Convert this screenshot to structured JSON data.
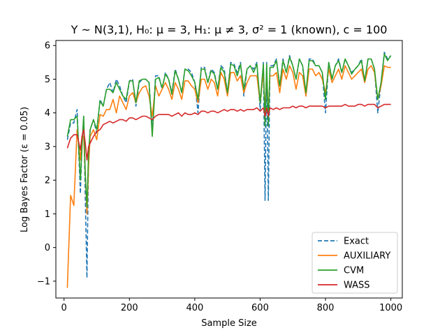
{
  "chart_data": {
    "type": "line",
    "title": "Y ~ N(3,1), H₀: μ = 3, H₁: μ ≠ 3, σ² = 1 (known), c = 100",
    "xlabel": "Sample Size",
    "ylabel": "Log Bayes Factor (ε = 0.05)",
    "xlim": [
      -25,
      1035
    ],
    "ylim": [
      -1.5,
      6.15
    ],
    "xticks": [
      0,
      200,
      400,
      600,
      800,
      1000
    ],
    "yticks": [
      -1,
      0,
      1,
      2,
      3,
      4,
      5,
      6
    ],
    "grid": false,
    "legend_position": "bottom-right",
    "x": [
      10,
      20,
      30,
      40,
      50,
      55,
      60,
      65,
      70,
      75,
      80,
      90,
      100,
      110,
      120,
      130,
      140,
      150,
      160,
      170,
      180,
      190,
      200,
      210,
      220,
      230,
      240,
      250,
      260,
      270,
      280,
      290,
      300,
      310,
      320,
      330,
      340,
      350,
      360,
      370,
      380,
      390,
      400,
      410,
      420,
      430,
      440,
      450,
      460,
      470,
      480,
      490,
      500,
      510,
      520,
      530,
      540,
      550,
      560,
      570,
      580,
      590,
      600,
      610,
      615,
      620,
      625,
      630,
      640,
      650,
      660,
      670,
      680,
      690,
      700,
      710,
      720,
      730,
      740,
      750,
      760,
      770,
      780,
      790,
      800,
      810,
      820,
      830,
      840,
      850,
      860,
      870,
      880,
      890,
      900,
      910,
      920,
      930,
      940,
      950,
      960,
      970,
      980,
      990,
      1000
    ],
    "series": [
      {
        "name": "Exact",
        "color": "#1f77b4",
        "style": "dashed",
        "values": [
          3.2,
          3.7,
          3.7,
          4.1,
          1.6,
          3.1,
          3.9,
          1.5,
          -0.9,
          2.7,
          3.5,
          3.8,
          3.4,
          4.4,
          4.2,
          4.7,
          4.9,
          4.6,
          5.0,
          4.8,
          4.5,
          4.3,
          4.95,
          5.0,
          4.2,
          4.9,
          5.0,
          5.0,
          4.9,
          3.5,
          5.1,
          5.1,
          4.7,
          5.2,
          5.0,
          4.6,
          5.3,
          5.0,
          4.6,
          5.3,
          5.3,
          5.2,
          4.9,
          4.0,
          5.35,
          5.35,
          4.9,
          5.3,
          5.2,
          4.7,
          5.4,
          5.3,
          4.6,
          5.5,
          5.45,
          5.2,
          5.5,
          4.5,
          5.3,
          5.4,
          5.3,
          5.5,
          4.1,
          5.5,
          1.4,
          5.5,
          1.4,
          5.4,
          5.4,
          5.6,
          4.8,
          5.6,
          5.2,
          5.7,
          5.4,
          5.0,
          5.6,
          5.4,
          4.5,
          5.6,
          5.6,
          5.4,
          5.4,
          5.2,
          4.0,
          5.5,
          5.0,
          5.4,
          5.6,
          5.2,
          5.6,
          5.4,
          5.2,
          5.3,
          5.4,
          5.6,
          4.9,
          5.6,
          5.6,
          5.3,
          4.0,
          4.9,
          5.8,
          5.6,
          5.7
        ]
      },
      {
        "name": "AUXILIARY",
        "color": "#ff7f0e",
        "style": "solid",
        "values": [
          -1.2,
          1.55,
          1.25,
          3.5,
          2.6,
          3.3,
          3.3,
          2.2,
          1.0,
          2.4,
          3.3,
          3.5,
          3.2,
          3.95,
          3.9,
          4.1,
          4.1,
          4.4,
          4.0,
          4.5,
          4.3,
          4.1,
          4.5,
          4.6,
          4.3,
          4.6,
          4.75,
          4.8,
          4.5,
          3.9,
          4.8,
          4.5,
          4.7,
          4.9,
          4.7,
          4.4,
          4.9,
          4.7,
          4.4,
          4.95,
          4.95,
          4.8,
          4.7,
          4.3,
          5.0,
          5.0,
          4.7,
          5.0,
          4.9,
          4.5,
          5.2,
          5.0,
          4.5,
          5.2,
          5.2,
          4.95,
          5.1,
          4.6,
          4.9,
          5.1,
          5.1,
          5.1,
          4.3,
          5.2,
          4.0,
          5.2,
          4.0,
          5.1,
          5.1,
          5.2,
          4.6,
          5.3,
          5.0,
          5.4,
          5.2,
          4.7,
          5.2,
          5.1,
          4.5,
          5.3,
          5.3,
          5.1,
          5.2,
          5.0,
          4.6,
          5.3,
          4.9,
          5.1,
          5.3,
          5.0,
          5.4,
          5.2,
          5.0,
          5.1,
          5.2,
          5.3,
          4.9,
          5.3,
          5.4,
          5.2,
          4.4,
          4.8,
          5.4,
          5.35,
          5.35
        ]
      },
      {
        "name": "CVM",
        "color": "#2ca02c",
        "style": "solid",
        "values": [
          3.3,
          3.8,
          3.8,
          3.9,
          2.0,
          3.0,
          3.9,
          2.2,
          1.2,
          2.8,
          3.5,
          3.8,
          3.5,
          4.35,
          4.2,
          4.7,
          4.7,
          4.6,
          4.9,
          4.7,
          4.5,
          4.4,
          4.95,
          4.95,
          4.3,
          4.95,
          5.0,
          5.0,
          4.9,
          3.3,
          5.0,
          5.05,
          4.75,
          5.15,
          5.0,
          4.55,
          5.25,
          5.0,
          4.6,
          5.3,
          5.25,
          5.1,
          4.9,
          4.4,
          5.3,
          5.3,
          4.9,
          5.25,
          5.15,
          4.7,
          5.35,
          5.2,
          4.6,
          5.45,
          5.4,
          5.1,
          5.45,
          4.7,
          5.3,
          5.4,
          5.2,
          5.45,
          4.3,
          5.45,
          3.6,
          5.45,
          3.6,
          5.35,
          5.35,
          5.55,
          4.8,
          5.55,
          5.2,
          5.65,
          5.4,
          5.0,
          5.6,
          5.4,
          4.6,
          5.55,
          5.55,
          5.4,
          5.4,
          5.2,
          4.4,
          5.5,
          5.0,
          5.4,
          5.55,
          5.2,
          5.6,
          5.4,
          5.15,
          5.3,
          5.4,
          5.55,
          4.95,
          5.6,
          5.6,
          5.3,
          4.4,
          4.9,
          5.75,
          5.55,
          5.7
        ]
      },
      {
        "name": "WASS",
        "color": "#d62728",
        "style": "solid",
        "values": [
          2.95,
          3.25,
          3.35,
          3.35,
          2.9,
          3.3,
          3.5,
          3.1,
          2.6,
          3.0,
          3.1,
          3.3,
          3.45,
          3.5,
          3.65,
          3.7,
          3.75,
          3.7,
          3.75,
          3.8,
          3.8,
          3.75,
          3.85,
          3.85,
          3.8,
          3.85,
          3.9,
          3.9,
          3.85,
          3.8,
          3.9,
          3.95,
          3.95,
          3.95,
          3.95,
          3.9,
          3.95,
          4.0,
          3.9,
          4.0,
          3.95,
          3.95,
          4.0,
          3.95,
          4.05,
          4.05,
          4.0,
          4.05,
          4.05,
          4.0,
          4.05,
          4.1,
          4.05,
          4.1,
          4.1,
          4.05,
          4.1,
          4.05,
          4.1,
          4.1,
          4.1,
          4.15,
          4.05,
          4.15,
          3.9,
          4.15,
          3.9,
          4.15,
          4.1,
          4.15,
          4.1,
          4.15,
          4.15,
          4.15,
          4.2,
          4.15,
          4.2,
          4.2,
          4.15,
          4.2,
          4.2,
          4.2,
          4.2,
          4.2,
          4.15,
          4.2,
          4.2,
          4.2,
          4.2,
          4.2,
          4.25,
          4.2,
          4.2,
          4.2,
          4.25,
          4.25,
          4.2,
          4.25,
          4.25,
          4.25,
          4.15,
          4.2,
          4.25,
          4.25,
          4.25
        ]
      }
    ]
  }
}
